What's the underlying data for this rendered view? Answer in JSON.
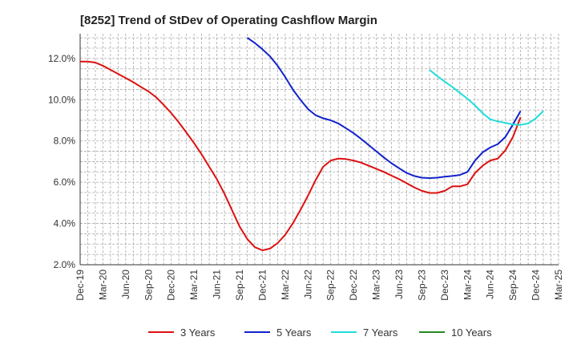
{
  "chart_data": {
    "type": "line",
    "title": "[8252]  Trend of StDev of Operating Cashflow Margin",
    "xlabel": "",
    "ylabel": "",
    "x_ticks": [
      "Dec-19",
      "Mar-20",
      "Jun-20",
      "Sep-20",
      "Dec-20",
      "Mar-21",
      "Jun-21",
      "Sep-21",
      "Dec-21",
      "Mar-22",
      "Jun-22",
      "Sep-22",
      "Dec-22",
      "Mar-23",
      "Jun-23",
      "Sep-23",
      "Dec-23",
      "Mar-24",
      "Jun-24",
      "Sep-24",
      "Dec-24",
      "Mar-25"
    ],
    "y_ticks": [
      "2.0%",
      "4.0%",
      "6.0%",
      "8.0%",
      "10.0%",
      "12.0%"
    ],
    "ylim": [
      2.0,
      13.2
    ],
    "grid": true,
    "legend_position": "bottom",
    "series": [
      {
        "name": "3 Years",
        "color": "#dd1111",
        "points": [
          [
            "Dec-19",
            11.85
          ],
          [
            "Jan-20",
            11.85
          ],
          [
            "Feb-20",
            11.8
          ],
          [
            "Mar-20",
            11.65
          ],
          [
            "Apr-20",
            11.45
          ],
          [
            "May-20",
            11.25
          ],
          [
            "Jun-20",
            11.05
          ],
          [
            "Jul-20",
            10.85
          ],
          [
            "Aug-20",
            10.62
          ],
          [
            "Sep-20",
            10.4
          ],
          [
            "Oct-20",
            10.12
          ],
          [
            "Nov-20",
            9.75
          ],
          [
            "Dec-20",
            9.35
          ],
          [
            "Jan-21",
            8.9
          ],
          [
            "Feb-21",
            8.4
          ],
          [
            "Mar-21",
            7.9
          ],
          [
            "Apr-21",
            7.35
          ],
          [
            "May-21",
            6.75
          ],
          [
            "Jun-21",
            6.15
          ],
          [
            "Jul-21",
            5.45
          ],
          [
            "Aug-21",
            4.65
          ],
          [
            "Sep-21",
            3.85
          ],
          [
            "Oct-21",
            3.25
          ],
          [
            "Nov-21",
            2.85
          ],
          [
            "Dec-21",
            2.7
          ],
          [
            "Jan-22",
            2.78
          ],
          [
            "Feb-22",
            3.05
          ],
          [
            "Mar-22",
            3.45
          ],
          [
            "Apr-22",
            4.0
          ],
          [
            "May-22",
            4.65
          ],
          [
            "Jun-22",
            5.35
          ],
          [
            "Jul-22",
            6.1
          ],
          [
            "Aug-22",
            6.75
          ],
          [
            "Sep-22",
            7.05
          ],
          [
            "Oct-22",
            7.15
          ],
          [
            "Nov-22",
            7.12
          ],
          [
            "Dec-22",
            7.05
          ],
          [
            "Jan-23",
            6.95
          ],
          [
            "Feb-23",
            6.8
          ],
          [
            "Mar-23",
            6.65
          ],
          [
            "Apr-23",
            6.5
          ],
          [
            "May-23",
            6.32
          ],
          [
            "Jun-23",
            6.15
          ],
          [
            "Jul-23",
            5.95
          ],
          [
            "Aug-23",
            5.75
          ],
          [
            "Sep-23",
            5.58
          ],
          [
            "Oct-23",
            5.48
          ],
          [
            "Nov-23",
            5.48
          ],
          [
            "Dec-23",
            5.58
          ],
          [
            "Jan-24",
            5.8
          ],
          [
            "Feb-24",
            5.8
          ],
          [
            "Mar-24",
            5.9
          ],
          [
            "Apr-24",
            6.45
          ],
          [
            "May-24",
            6.8
          ],
          [
            "Jun-24",
            7.05
          ],
          [
            "Jul-24",
            7.15
          ],
          [
            "Aug-24",
            7.55
          ],
          [
            "Sep-24",
            8.2
          ],
          [
            "Oct-24",
            9.15
          ]
        ]
      },
      {
        "name": "5 Years",
        "color": "#1122cc",
        "points": [
          [
            "Oct-21",
            13.0
          ],
          [
            "Nov-21",
            12.75
          ],
          [
            "Dec-21",
            12.45
          ],
          [
            "Jan-22",
            12.1
          ],
          [
            "Feb-22",
            11.65
          ],
          [
            "Mar-22",
            11.1
          ],
          [
            "Apr-22",
            10.5
          ],
          [
            "May-22",
            10.0
          ],
          [
            "Jun-22",
            9.55
          ],
          [
            "Jul-22",
            9.25
          ],
          [
            "Aug-22",
            9.1
          ],
          [
            "Sep-22",
            9.0
          ],
          [
            "Oct-22",
            8.85
          ],
          [
            "Nov-22",
            8.62
          ],
          [
            "Dec-22",
            8.38
          ],
          [
            "Jan-23",
            8.1
          ],
          [
            "Feb-23",
            7.8
          ],
          [
            "Mar-23",
            7.5
          ],
          [
            "Apr-23",
            7.2
          ],
          [
            "May-23",
            6.92
          ],
          [
            "Jun-23",
            6.68
          ],
          [
            "Jul-23",
            6.45
          ],
          [
            "Aug-23",
            6.3
          ],
          [
            "Sep-23",
            6.22
          ],
          [
            "Oct-23",
            6.2
          ],
          [
            "Nov-23",
            6.22
          ],
          [
            "Dec-23",
            6.27
          ],
          [
            "Jan-24",
            6.3
          ],
          [
            "Feb-24",
            6.35
          ],
          [
            "Mar-24",
            6.5
          ],
          [
            "Apr-24",
            7.05
          ],
          [
            "May-24",
            7.45
          ],
          [
            "Jun-24",
            7.68
          ],
          [
            "Jul-24",
            7.85
          ],
          [
            "Aug-24",
            8.2
          ],
          [
            "Sep-24",
            8.8
          ],
          [
            "Oct-24",
            9.45
          ]
        ]
      },
      {
        "name": "7 Years",
        "color": "#22dddd",
        "points": [
          [
            "Oct-23",
            11.45
          ],
          [
            "Nov-23",
            11.15
          ],
          [
            "Dec-23",
            10.88
          ],
          [
            "Jan-24",
            10.62
          ],
          [
            "Feb-24",
            10.33
          ],
          [
            "Mar-24",
            10.05
          ],
          [
            "Apr-24",
            9.72
          ],
          [
            "May-24",
            9.35
          ],
          [
            "Jun-24",
            9.05
          ],
          [
            "Jul-24",
            8.95
          ],
          [
            "Aug-24",
            8.88
          ],
          [
            "Sep-24",
            8.8
          ],
          [
            "Oct-24",
            8.78
          ],
          [
            "Nov-24",
            8.85
          ],
          [
            "Dec-24",
            9.1
          ],
          [
            "Jan-25",
            9.45
          ]
        ]
      },
      {
        "name": "10 Years",
        "color": "#228822",
        "points": []
      }
    ]
  }
}
